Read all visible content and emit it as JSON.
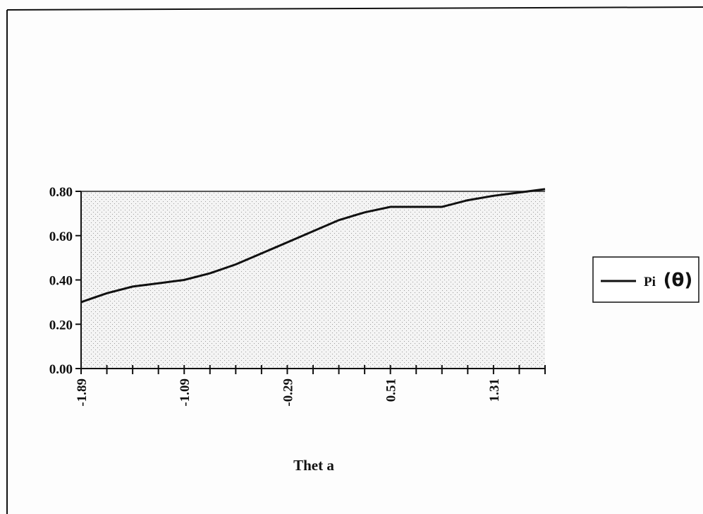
{
  "chart_data": {
    "type": "line",
    "title": "",
    "xlabel": "Thet a",
    "ylabel": "",
    "x": [
      -1.89,
      -1.69,
      -1.49,
      -1.29,
      -1.09,
      -0.89,
      -0.69,
      -0.49,
      -0.29,
      -0.09,
      0.11,
      0.31,
      0.51,
      0.71,
      0.91,
      1.11,
      1.31,
      1.51,
      1.71
    ],
    "x_tick_labels": [
      "-1.89",
      "-1.09",
      "-0.29",
      "0.51",
      "1.31"
    ],
    "y_tick_labels": [
      "0.00",
      "0.20",
      "0.40",
      "0.60",
      "0.80"
    ],
    "ylim": [
      0,
      0.8
    ],
    "series": [
      {
        "name": "Pi (θ)",
        "color": "#111111",
        "values": [
          0.3,
          0.34,
          0.37,
          0.385,
          0.4,
          0.43,
          0.47,
          0.52,
          0.57,
          0.62,
          0.67,
          0.705,
          0.73,
          0.73,
          0.73,
          0.76,
          0.78,
          0.795,
          0.81
        ]
      }
    ],
    "legend": {
      "placement": "right",
      "label_text": "Pi",
      "label_symbol": "(θ)"
    },
    "grid": false
  }
}
